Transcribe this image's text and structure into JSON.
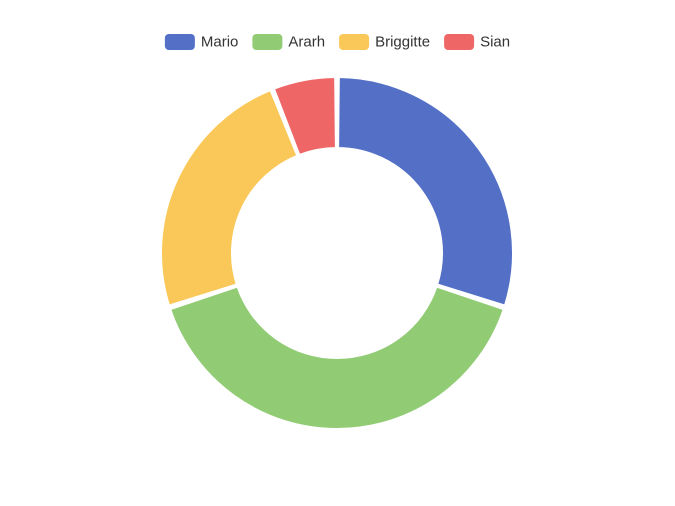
{
  "chart_data": {
    "type": "pie",
    "variant": "donut",
    "legend_position": "top-center",
    "categories": [
      "Mario",
      "Ararh",
      "Briggitte",
      "Sian"
    ],
    "values": [
      30,
      40,
      24,
      6
    ],
    "colors": [
      "#5470c6",
      "#91cc75",
      "#fac858",
      "#ee6666"
    ],
    "start": "top",
    "direction": "clockwise"
  }
}
